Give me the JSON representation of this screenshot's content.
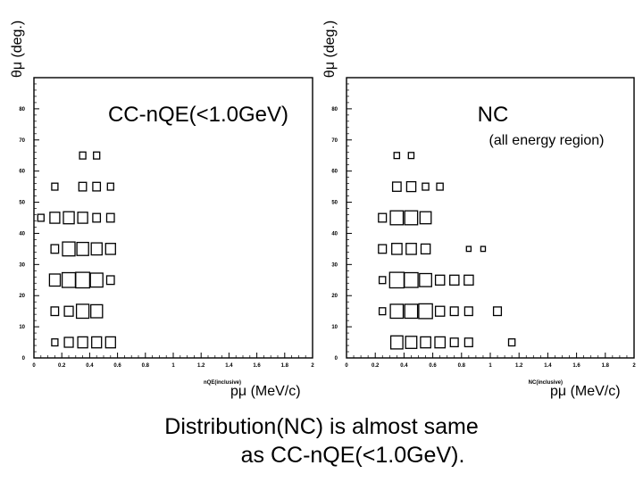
{
  "chart_data": [
    {
      "type": "heatmap",
      "title": "CC-nQE(<1.0GeV)",
      "xlabel": "nQE(inclusive)",
      "xunit": "pμ (MeV/c)",
      "ylabel": "θμ (deg.)",
      "xlim": [
        0,
        2
      ],
      "ylim": [
        0,
        90
      ],
      "xticks": [
        "0",
        "0.2",
        "0.4",
        "0.6",
        "0.8",
        "1",
        "1.2",
        "1.4",
        "1.6",
        "1.8",
        "2"
      ],
      "yticks": [
        "0",
        "10",
        "20",
        "30",
        "40",
        "50",
        "60",
        "70",
        "80"
      ],
      "bin_width": [
        0.1,
        5
      ],
      "cells": [
        {
          "x": 0.35,
          "y": 65,
          "w": 0.2
        },
        {
          "x": 0.45,
          "y": 65,
          "w": 0.2
        },
        {
          "x": 0.15,
          "y": 55,
          "w": 0.2
        },
        {
          "x": 0.35,
          "y": 55,
          "w": 0.3
        },
        {
          "x": 0.45,
          "y": 55,
          "w": 0.3
        },
        {
          "x": 0.55,
          "y": 55,
          "w": 0.2
        },
        {
          "x": 0.05,
          "y": 45,
          "w": 0.2
        },
        {
          "x": 0.15,
          "y": 45,
          "w": 0.5
        },
        {
          "x": 0.25,
          "y": 45,
          "w": 0.6
        },
        {
          "x": 0.35,
          "y": 45,
          "w": 0.5
        },
        {
          "x": 0.45,
          "y": 45,
          "w": 0.3
        },
        {
          "x": 0.55,
          "y": 45,
          "w": 0.3
        },
        {
          "x": 0.15,
          "y": 35,
          "w": 0.3
        },
        {
          "x": 0.25,
          "y": 35,
          "w": 0.8
        },
        {
          "x": 0.35,
          "y": 35,
          "w": 0.7
        },
        {
          "x": 0.45,
          "y": 35,
          "w": 0.6
        },
        {
          "x": 0.55,
          "y": 35,
          "w": 0.5
        },
        {
          "x": 0.15,
          "y": 25,
          "w": 0.6
        },
        {
          "x": 0.25,
          "y": 25,
          "w": 0.9
        },
        {
          "x": 0.35,
          "y": 25,
          "w": 1.0
        },
        {
          "x": 0.45,
          "y": 25,
          "w": 0.8
        },
        {
          "x": 0.55,
          "y": 25,
          "w": 0.3
        },
        {
          "x": 0.15,
          "y": 15,
          "w": 0.3
        },
        {
          "x": 0.25,
          "y": 15,
          "w": 0.4
        },
        {
          "x": 0.35,
          "y": 15,
          "w": 0.8
        },
        {
          "x": 0.45,
          "y": 15,
          "w": 0.7
        },
        {
          "x": 0.15,
          "y": 5,
          "w": 0.2
        },
        {
          "x": 0.25,
          "y": 5,
          "w": 0.4
        },
        {
          "x": 0.35,
          "y": 5,
          "w": 0.5
        },
        {
          "x": 0.45,
          "y": 5,
          "w": 0.5
        },
        {
          "x": 0.55,
          "y": 5,
          "w": 0.5
        }
      ]
    },
    {
      "type": "heatmap",
      "title": "NC",
      "subtitle": "(all energy region)",
      "xlabel": "NC(inclusive)",
      "xunit": "pμ (MeV/c)",
      "ylabel": "θμ (deg.)",
      "xlim": [
        0,
        2
      ],
      "ylim": [
        0,
        90
      ],
      "xticks": [
        "0",
        "0.2",
        "0.4",
        "0.6",
        "0.8",
        "1",
        "1.2",
        "1.4",
        "1.6",
        "1.8",
        "2"
      ],
      "yticks": [
        "0",
        "10",
        "20",
        "30",
        "40",
        "50",
        "60",
        "70",
        "80"
      ],
      "bin_width": [
        0.1,
        5
      ],
      "cells": [
        {
          "x": 0.35,
          "y": 65,
          "w": 0.15
        },
        {
          "x": 0.45,
          "y": 65,
          "w": 0.15
        },
        {
          "x": 0.35,
          "y": 55,
          "w": 0.35
        },
        {
          "x": 0.45,
          "y": 55,
          "w": 0.4
        },
        {
          "x": 0.55,
          "y": 55,
          "w": 0.2
        },
        {
          "x": 0.65,
          "y": 55,
          "w": 0.2
        },
        {
          "x": 0.25,
          "y": 45,
          "w": 0.3
        },
        {
          "x": 0.35,
          "y": 45,
          "w": 0.8
        },
        {
          "x": 0.45,
          "y": 45,
          "w": 0.8
        },
        {
          "x": 0.55,
          "y": 45,
          "w": 0.6
        },
        {
          "x": 0.25,
          "y": 35,
          "w": 0.3
        },
        {
          "x": 0.35,
          "y": 35,
          "w": 0.5
        },
        {
          "x": 0.45,
          "y": 35,
          "w": 0.5
        },
        {
          "x": 0.55,
          "y": 35,
          "w": 0.4
        },
        {
          "x": 0.85,
          "y": 35,
          "w": 0.1
        },
        {
          "x": 0.95,
          "y": 35,
          "w": 0.1
        },
        {
          "x": 0.25,
          "y": 25,
          "w": 0.2
        },
        {
          "x": 0.35,
          "y": 25,
          "w": 1.0
        },
        {
          "x": 0.45,
          "y": 25,
          "w": 0.9
        },
        {
          "x": 0.55,
          "y": 25,
          "w": 0.7
        },
        {
          "x": 0.65,
          "y": 25,
          "w": 0.4
        },
        {
          "x": 0.75,
          "y": 25,
          "w": 0.4
        },
        {
          "x": 0.85,
          "y": 25,
          "w": 0.4
        },
        {
          "x": 0.25,
          "y": 15,
          "w": 0.2
        },
        {
          "x": 0.35,
          "y": 15,
          "w": 0.8
        },
        {
          "x": 0.45,
          "y": 15,
          "w": 0.8
        },
        {
          "x": 0.55,
          "y": 15,
          "w": 0.9
        },
        {
          "x": 0.65,
          "y": 15,
          "w": 0.4
        },
        {
          "x": 0.75,
          "y": 15,
          "w": 0.3
        },
        {
          "x": 0.85,
          "y": 15,
          "w": 0.3
        },
        {
          "x": 1.05,
          "y": 15,
          "w": 0.3
        },
        {
          "x": 0.35,
          "y": 5,
          "w": 0.7
        },
        {
          "x": 0.45,
          "y": 5,
          "w": 0.6
        },
        {
          "x": 0.55,
          "y": 5,
          "w": 0.5
        },
        {
          "x": 0.65,
          "y": 5,
          "w": 0.5
        },
        {
          "x": 0.75,
          "y": 5,
          "w": 0.3
        },
        {
          "x": 0.85,
          "y": 5,
          "w": 0.3
        },
        {
          "x": 1.15,
          "y": 5,
          "w": 0.2
        }
      ]
    }
  ],
  "caption": {
    "line1": "Distribution(NC) is almost same",
    "line2": "as CC-nQE(<1.0GeV)."
  }
}
